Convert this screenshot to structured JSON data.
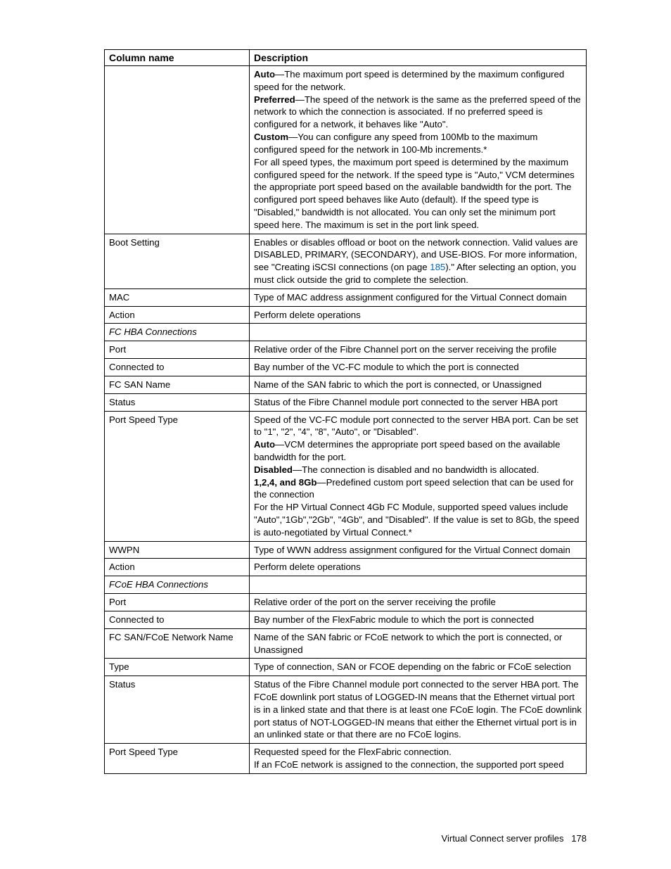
{
  "table": {
    "headers": {
      "col1": "Column name",
      "col2": "Description"
    },
    "rows": [
      {
        "name": "",
        "segments": [
          {
            "bold": true,
            "text": "Auto"
          },
          {
            "bold": false,
            "text": "—The maximum port speed is determined by the maximum configured speed for the network."
          },
          {
            "break": true
          },
          {
            "bold": true,
            "text": "Preferred"
          },
          {
            "bold": false,
            "text": "—The speed of the network is the same as the preferred speed of the network to which the connection is associated. If no preferred speed is configured for a network, it behaves like \"Auto\"."
          },
          {
            "break": true
          },
          {
            "bold": true,
            "text": "Custom"
          },
          {
            "bold": false,
            "text": "—You can configure any speed from 100Mb to the maximum configured speed for the network in 100-Mb increments.*"
          },
          {
            "break": true
          },
          {
            "bold": false,
            "text": "For all speed types, the maximum port speed is determined by the maximum configured speed for the network. If the speed type is \"Auto,\" VCM determines the appropriate port speed based on the available bandwidth for the port. The configured port speed behaves like Auto (default). If the speed type is \"Disabled,\" bandwidth is not allocated. You can only set the minimum port speed here. The maximum is set in the port link speed."
          }
        ]
      },
      {
        "name": "Boot Setting",
        "segments": [
          {
            "bold": false,
            "text": "Enables or disables offload or boot on the network connection. Valid values are DISABLED, PRIMARY, (SECONDARY), and USE-BIOS. For more information, see \"Creating iSCSI connections (on page "
          },
          {
            "link": true,
            "text": "185"
          },
          {
            "bold": false,
            "text": ").\" After selecting an option, you must click outside the grid to complete the selection."
          }
        ]
      },
      {
        "name": "MAC",
        "segments": [
          {
            "text": "Type of MAC address assignment configured for the Virtual Connect domain"
          }
        ]
      },
      {
        "name": "Action",
        "segments": [
          {
            "text": "Perform delete operations"
          }
        ]
      },
      {
        "name": "FC HBA Connections",
        "italic": true,
        "segments": [
          {
            "text": ""
          }
        ]
      },
      {
        "name": "Port",
        "segments": [
          {
            "text": "Relative order of the Fibre Channel port on the server receiving the profile"
          }
        ]
      },
      {
        "name": "Connected to",
        "segments": [
          {
            "text": "Bay number of the VC-FC module to which the port is connected"
          }
        ]
      },
      {
        "name": "FC SAN Name",
        "segments": [
          {
            "text": "Name of the SAN fabric to which the port is connected, or Unassigned"
          }
        ]
      },
      {
        "name": "Status",
        "segments": [
          {
            "text": "Status of the Fibre Channel module port connected to the server HBA port"
          }
        ]
      },
      {
        "name": "Port Speed Type",
        "segments": [
          {
            "text": "Speed of the VC-FC module port connected to the server HBA port. Can be set to \"1\", \"2\", \"4\", \"8\", \"Auto\", or \"Disabled\"."
          },
          {
            "break": true
          },
          {
            "bold": true,
            "text": "Auto"
          },
          {
            "text": "—VCM determines the appropriate port speed based on the available bandwidth for the port."
          },
          {
            "break": true
          },
          {
            "bold": true,
            "text": "Disabled"
          },
          {
            "text": "—The connection is disabled and no bandwidth is allocated."
          },
          {
            "break": true
          },
          {
            "bold": true,
            "text": "1,2,4, and 8Gb"
          },
          {
            "text": "—Predefined custom port speed selection that can be used for the connection"
          },
          {
            "break": true
          },
          {
            "text": "For the HP Virtual Connect 4Gb FC Module, supported speed values include \"Auto\",\"1Gb\",\"2Gb\", \"4Gb\", and \"Disabled\". If the value is set to 8Gb, the speed is auto-negotiated by Virtual Connect.*"
          }
        ]
      },
      {
        "name": "WWPN",
        "segments": [
          {
            "text": "Type of WWN address assignment configured for the Virtual Connect domain"
          }
        ]
      },
      {
        "name": "Action",
        "segments": [
          {
            "text": "Perform delete operations"
          }
        ]
      },
      {
        "name": "FCoE HBA Connections",
        "italic": true,
        "segments": [
          {
            "text": ""
          }
        ]
      },
      {
        "name": "Port",
        "segments": [
          {
            "text": "Relative order of the port on the server receiving the profile"
          }
        ]
      },
      {
        "name": "Connected to",
        "segments": [
          {
            "text": "Bay number of the FlexFabric module to which the port is connected"
          }
        ]
      },
      {
        "name": "FC SAN/FCoE Network Name",
        "segments": [
          {
            "text": "Name of the SAN fabric or FCoE network to which the port is connected, or Unassigned"
          }
        ]
      },
      {
        "name": "Type",
        "segments": [
          {
            "text": "Type of connection, SAN or FCOE depending on the fabric or FCoE selection"
          }
        ]
      },
      {
        "name": "Status",
        "segments": [
          {
            "text": "Status of the Fibre Channel module port connected to the server HBA port. The FCoE downlink port status of LOGGED-IN means that the Ethernet virtual port is in a linked state and that there is at least one FCoE login. The FCoE downlink port status of NOT-LOGGED-IN means that either the Ethernet virtual port is in an unlinked state or that there are no FCoE logins."
          }
        ]
      },
      {
        "name": "Port Speed Type",
        "segments": [
          {
            "text": "Requested speed for the FlexFabric connection."
          },
          {
            "break": true
          },
          {
            "text": "If an FCoE network is assigned to the connection, the supported port speed"
          }
        ]
      }
    ]
  },
  "footer": {
    "section": "Virtual Connect server profiles",
    "page": "178"
  }
}
